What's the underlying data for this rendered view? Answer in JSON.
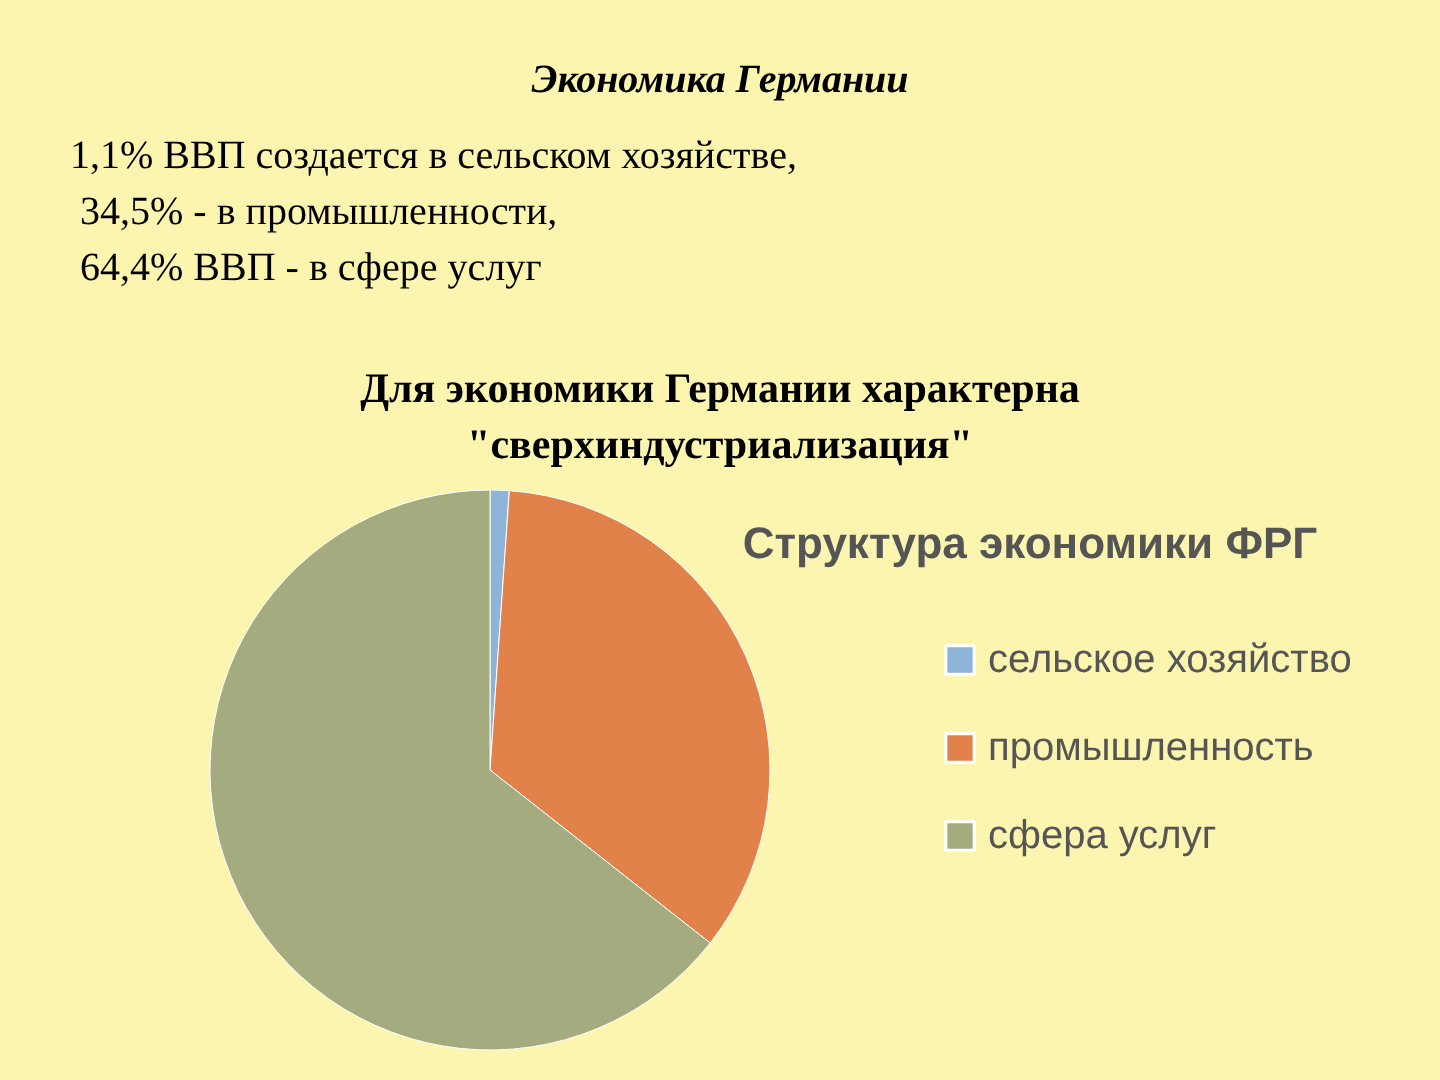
{
  "chart_data": {
    "type": "pie",
    "title": "Структура экономики ФРГ",
    "categories": [
      "сельское хозяйство",
      "промышленность",
      "сфера услуг"
    ],
    "values": [
      1.1,
      34.5,
      64.4
    ],
    "colors": [
      "#8fb4d9",
      "#e0824a",
      "#a3ab7f"
    ],
    "legend": "right",
    "annotations": [
      "Экономика Германии",
      "1,1% ВВП создается в сельском хозяйстве,",
      "34,5% - в промышленности,",
      "64,4% ВВП - в сфере услуг",
      "Для экономики Германии характерна",
      "\"сверхиндустриализация\""
    ]
  }
}
